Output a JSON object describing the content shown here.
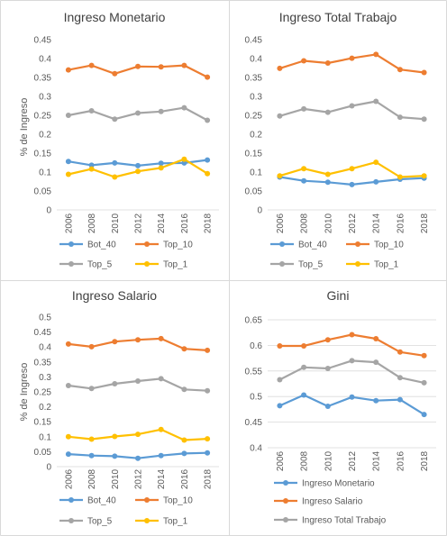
{
  "chart_data": [
    {
      "type": "line",
      "title": "Ingreso Monetario",
      "ylabel": "% de Ingreso",
      "x": [
        "2006",
        "2008",
        "2010",
        "2012",
        "2014",
        "2016",
        "2018"
      ],
      "yticks": [
        "0",
        "0.05",
        "0.1",
        "0.15",
        "0.2",
        "0.25",
        "0.3",
        "0.35",
        "0.4",
        "0.45"
      ],
      "ylim": [
        0,
        0.45
      ],
      "grid": false,
      "legend": "bottom",
      "series": [
        {
          "name": "Bot_40",
          "color": "#5b9bd5",
          "values": [
            0.128,
            0.118,
            0.124,
            0.117,
            0.123,
            0.124,
            0.132
          ]
        },
        {
          "name": "Top_10",
          "color": "#ed7d31",
          "values": [
            0.37,
            0.382,
            0.36,
            0.379,
            0.378,
            0.382,
            0.351
          ]
        },
        {
          "name": "Top_5",
          "color": "#a5a5a5",
          "values": [
            0.25,
            0.262,
            0.24,
            0.256,
            0.26,
            0.27,
            0.237
          ]
        },
        {
          "name": "Top_1",
          "color": "#ffc000",
          "values": [
            0.094,
            0.108,
            0.087,
            0.102,
            0.111,
            0.134,
            0.096
          ]
        }
      ]
    },
    {
      "type": "line",
      "title": "Ingreso Total Trabajo",
      "ylabel": "",
      "x": [
        "2006",
        "2008",
        "2010",
        "2012",
        "2014",
        "2016",
        "2018"
      ],
      "yticks": [
        "0",
        "0.05",
        "0.1",
        "0.15",
        "0.2",
        "0.25",
        "0.3",
        "0.35",
        "0.4",
        "0.45"
      ],
      "ylim": [
        0,
        0.45
      ],
      "grid": false,
      "legend": "bottom",
      "series": [
        {
          "name": "Bot_40",
          "color": "#5b9bd5",
          "values": [
            0.087,
            0.077,
            0.073,
            0.067,
            0.074,
            0.081,
            0.084
          ]
        },
        {
          "name": "Top_10",
          "color": "#ed7d31",
          "values": [
            0.374,
            0.394,
            0.388,
            0.401,
            0.411,
            0.371,
            0.363
          ]
        },
        {
          "name": "Top_5",
          "color": "#a5a5a5",
          "values": [
            0.248,
            0.267,
            0.258,
            0.275,
            0.287,
            0.245,
            0.24
          ]
        },
        {
          "name": "Top_1",
          "color": "#ffc000",
          "values": [
            0.09,
            0.109,
            0.094,
            0.109,
            0.126,
            0.087,
            0.09
          ]
        }
      ]
    },
    {
      "type": "line",
      "title": "Ingreso Salario",
      "ylabel": "% de Ingreso",
      "x": [
        "2006",
        "2008",
        "2010",
        "2012",
        "2014",
        "2016",
        "2018"
      ],
      "yticks": [
        "0",
        "0.05",
        "0.1",
        "0.15",
        "0.2",
        "0.25",
        "0.3",
        "0.35",
        "0.4",
        "0.45",
        "0.5"
      ],
      "ylim": [
        0,
        0.5
      ],
      "grid": false,
      "legend": "bottom",
      "series": [
        {
          "name": "Bot_40",
          "color": "#5b9bd5",
          "values": [
            0.042,
            0.037,
            0.035,
            0.028,
            0.037,
            0.044,
            0.046
          ]
        },
        {
          "name": "Top_10",
          "color": "#ed7d31",
          "values": [
            0.41,
            0.401,
            0.418,
            0.424,
            0.428,
            0.394,
            0.389
          ]
        },
        {
          "name": "Top_5",
          "color": "#a5a5a5",
          "values": [
            0.271,
            0.261,
            0.277,
            0.286,
            0.294,
            0.258,
            0.254
          ]
        },
        {
          "name": "Top_1",
          "color": "#ffc000",
          "values": [
            0.1,
            0.092,
            0.101,
            0.108,
            0.124,
            0.089,
            0.093
          ]
        }
      ]
    },
    {
      "type": "line",
      "title": "Gini",
      "ylabel": "",
      "x": [
        "2006",
        "2008",
        "2010",
        "2012",
        "2014",
        "2016",
        "2018"
      ],
      "yticks": [
        "0.4",
        "0.45",
        "0.5",
        "0.55",
        "0.6",
        "0.65"
      ],
      "ylim": [
        0.4,
        0.65
      ],
      "grid": true,
      "legend": "bottom",
      "series": [
        {
          "name": "Ingreso Monetario",
          "color": "#5b9bd5",
          "values": [
            0.482,
            0.503,
            0.481,
            0.499,
            0.492,
            0.494,
            0.465
          ]
        },
        {
          "name": "Ingreso Salario",
          "color": "#ed7d31",
          "values": [
            0.599,
            0.599,
            0.611,
            0.621,
            0.613,
            0.587,
            0.58
          ]
        },
        {
          "name": "Ingreso Total Trabajo",
          "color": "#a5a5a5",
          "values": [
            0.533,
            0.557,
            0.555,
            0.57,
            0.567,
            0.537,
            0.527
          ]
        }
      ]
    }
  ]
}
